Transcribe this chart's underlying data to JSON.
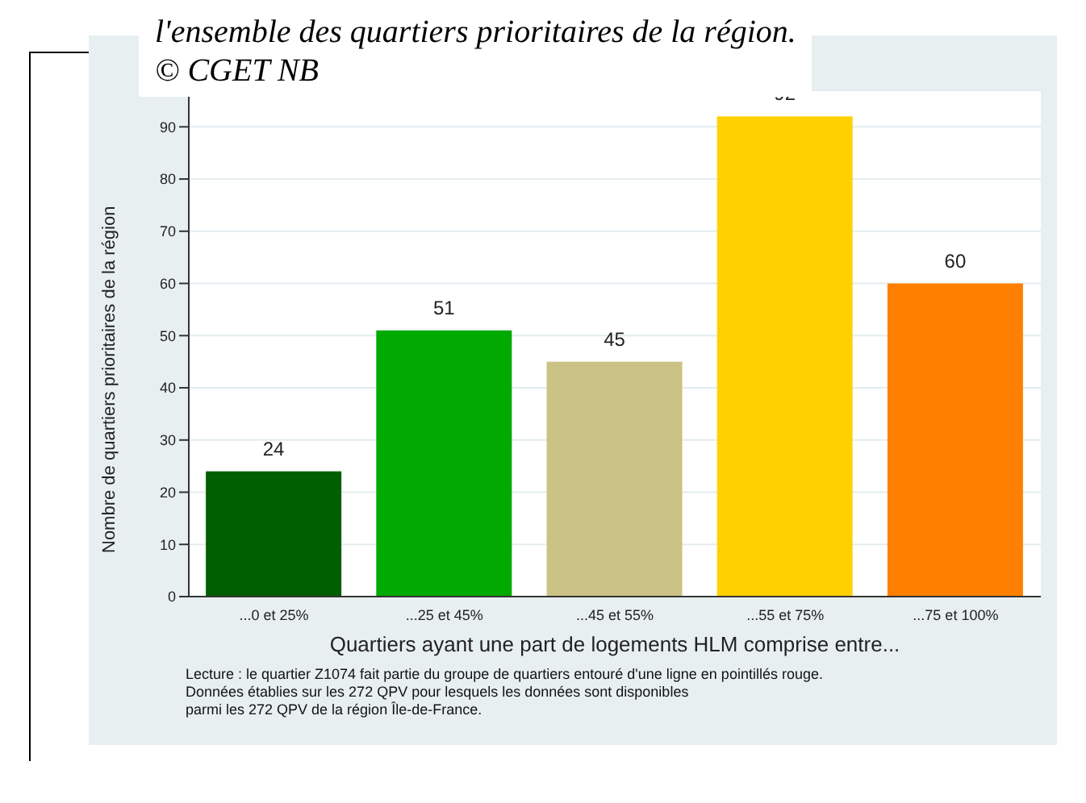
{
  "chart_data": {
    "type": "bar",
    "xlabel": "Quartiers ayant une part de logements HLM comprise entre...",
    "ylabel": "Nombre de quartiers prioritaires de la région",
    "categories": [
      "...0 et 25%",
      "...25 et 45%",
      "...45 et 55%",
      "...55 et 75%",
      "...75 et 100%"
    ],
    "values": [
      24,
      51,
      45,
      92,
      60
    ],
    "colors": [
      "#005f00",
      "#00aa00",
      "#cbc285",
      "#ffd100",
      "#ff8000"
    ],
    "ylim": [
      0,
      97
    ],
    "yticks": [
      0,
      10,
      20,
      30,
      40,
      50,
      60,
      70,
      80,
      90
    ],
    "grid": "y",
    "data_labels": true,
    "annotations": [
      "l'ensemble des quartiers prioritaires de la région.",
      "© CGET NB",
      "Lecture : le quartier Z1074 fait partie du groupe de quartiers entouré d'une ligne en pointillés rouge.\nDonnées établies sur les 272 QPV pour lesquels les données sont disponibles\nparmi les 272 QPV de la région Île-de-France."
    ]
  }
}
